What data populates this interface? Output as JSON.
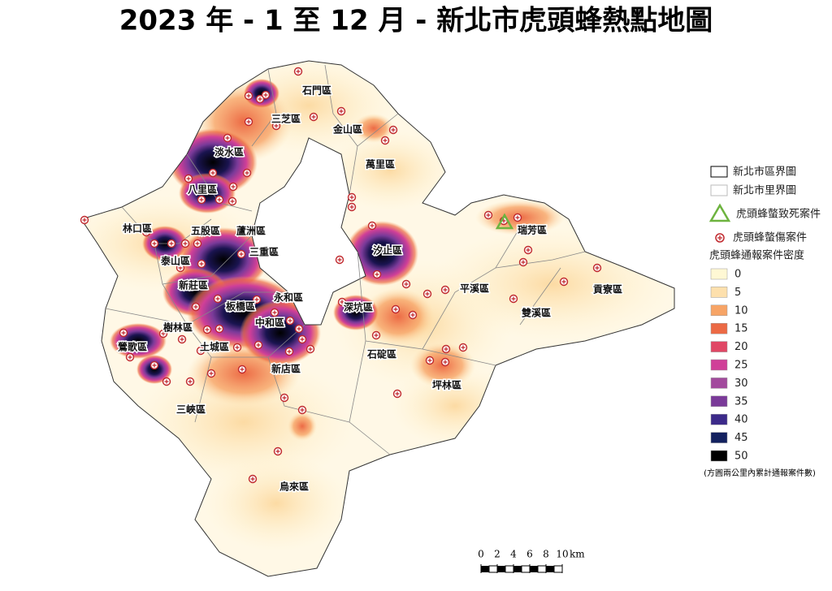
{
  "title": "2023 年 - 1 至 12 月 - 新北市虎頭蜂熱點地圖",
  "districts": [
    "石門區",
    "三芝區",
    "金山區",
    "萬里區",
    "淡水區",
    "八里區",
    "林口區",
    "五股區",
    "蘆洲區",
    "三重區",
    "泰山區",
    "新莊區",
    "板橋區",
    "永和區",
    "中和區",
    "樹林區",
    "土城區",
    "鶯歌區",
    "新店區",
    "三峽區",
    "烏來區",
    "汐止區",
    "深坑區",
    "石碇區",
    "坪林區",
    "瑞芳區",
    "平溪區",
    "雙溪區",
    "貢寮區"
  ],
  "legend": {
    "district_boundary": "新北市區界圖",
    "village_boundary": "新北市里界圖",
    "death_case": "虎頭蜂螫致死案件",
    "injury_case": "虎頭蜂螫傷案件",
    "density_title": "虎頭蜂通報案件密度",
    "levels": [
      0,
      5,
      10,
      15,
      20,
      25,
      30,
      35,
      40,
      45,
      50
    ],
    "colors": [
      "#fff8d4",
      "#fde0ad",
      "#f7a466",
      "#ec6a45",
      "#e04765",
      "#d03f98",
      "#a24a9d",
      "#7a3a99",
      "#3c2a8a",
      "#13215f",
      "#000000"
    ],
    "note": "(方圓兩公里內累計通報案件數)"
  },
  "scale_bar": {
    "ticks": [
      0,
      2,
      4,
      6,
      8,
      10
    ],
    "unit": "km"
  }
}
